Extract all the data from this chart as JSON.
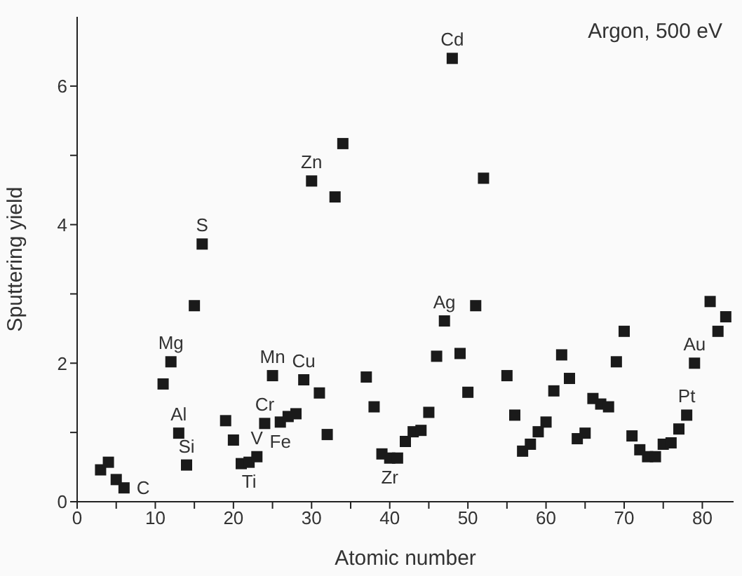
{
  "chart_data": {
    "type": "scatter",
    "xlabel": "Atomic number",
    "ylabel": "Sputtering yield",
    "x": [
      3,
      4,
      5,
      6,
      11,
      12,
      13,
      14,
      15,
      16,
      19,
      20,
      21,
      22,
      23,
      24,
      25,
      26,
      27,
      28,
      29,
      30,
      31,
      32,
      33,
      34,
      37,
      38,
      39,
      40,
      41,
      42,
      43,
      44,
      45,
      46,
      47,
      48,
      49,
      50,
      51,
      52,
      55,
      56,
      57,
      58,
      59,
      60,
      61,
      62,
      63,
      64,
      65,
      66,
      67,
      68,
      69,
      70,
      71,
      72,
      73,
      74,
      75,
      76,
      77,
      78,
      79,
      81,
      82,
      83
    ],
    "series": [
      {
        "color": "#1a1a1a",
        "marker": "square",
        "values": [
          0.46,
          0.57,
          0.32,
          0.2,
          1.7,
          2.02,
          0.99,
          0.53,
          2.83,
          3.72,
          1.17,
          0.89,
          0.55,
          0.57,
          0.65,
          1.13,
          1.82,
          1.15,
          1.23,
          1.27,
          1.76,
          4.63,
          1.57,
          0.97,
          4.4,
          5.17,
          1.8,
          1.37,
          0.69,
          0.63,
          0.63,
          0.87,
          1.01,
          1.03,
          1.29,
          2.1,
          2.61,
          6.4,
          2.14,
          1.58,
          2.83,
          4.67,
          1.82,
          1.25,
          0.73,
          0.83,
          1.01,
          1.15,
          1.6,
          2.12,
          1.78,
          0.91,
          0.99,
          1.49,
          1.41,
          1.37,
          2.02,
          2.46,
          0.95,
          0.75,
          0.65,
          0.65,
          0.83,
          0.85,
          1.05,
          1.25,
          2.0,
          2.89,
          2.46,
          2.67
        ]
      }
    ],
    "xlim": [
      0,
      84
    ],
    "xticks": [
      0,
      {
        "value": 5,
        "label": null
      },
      10,
      {
        "value": 15,
        "label": null
      },
      20,
      {
        "value": 25,
        "label": null
      },
      30,
      {
        "value": 35,
        "label": null
      },
      40,
      {
        "value": 45,
        "label": null
      },
      50,
      {
        "value": 55,
        "label": null
      },
      60,
      {
        "value": 65,
        "label": null
      },
      70,
      {
        "value": 75,
        "label": null
      },
      80
    ],
    "ylim": [
      0,
      7
    ],
    "yticks": [
      0,
      {
        "value": 1,
        "label": null
      },
      2,
      {
        "value": 3,
        "label": null
      },
      4,
      {
        "value": 5,
        "label": null
      },
      6
    ],
    "grid": false,
    "legend": false,
    "annotations": [
      "Argon, 500 eV",
      {
        "text": "C",
        "x": 6,
        "y": 0.2
      },
      {
        "text": "Mg",
        "x": 12,
        "y": 2.02
      },
      {
        "text": "Al",
        "x": 13,
        "y": 0.99
      },
      {
        "text": "Si",
        "x": 14,
        "y": 0.53
      },
      {
        "text": "S",
        "x": 16,
        "y": 3.72
      },
      {
        "text": "Ti",
        "x": 22,
        "y": 0.57
      },
      {
        "text": "V",
        "x": 23,
        "y": 0.65
      },
      {
        "text": "Cr",
        "x": 24,
        "y": 1.13
      },
      {
        "text": "Mn",
        "x": 25,
        "y": 1.82
      },
      {
        "text": "Fe",
        "x": 26,
        "y": 1.15
      },
      {
        "text": "Cu",
        "x": 29,
        "y": 1.76
      },
      {
        "text": "Zn",
        "x": 30,
        "y": 4.63
      },
      {
        "text": "Zr",
        "x": 40,
        "y": 0.63
      },
      {
        "text": "Ag",
        "x": 47,
        "y": 2.61
      },
      {
        "text": "Cd",
        "x": 48,
        "y": 6.4
      },
      {
        "text": "Pt",
        "x": 78,
        "y": 1.25
      },
      {
        "text": "Au",
        "x": 79,
        "y": 2.0
      }
    ]
  }
}
